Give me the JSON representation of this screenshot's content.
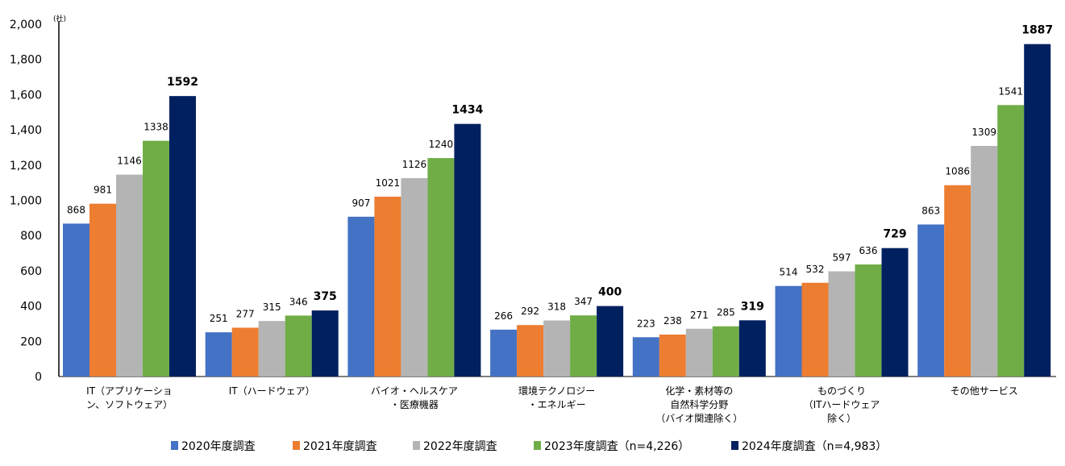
{
  "chart_data": {
    "type": "bar",
    "title": "",
    "xlabel": "",
    "ylabel": "",
    "unit_label": "(社)",
    "ylim": [
      0,
      2000
    ],
    "yticks": [
      0,
      200,
      400,
      600,
      800,
      1000,
      1200,
      1400,
      1600,
      1800,
      2000
    ],
    "ytick_labels": [
      "0",
      "200",
      "400",
      "600",
      "800",
      "1,000",
      "1,200",
      "1,400",
      "1,600",
      "1,800",
      "2,000"
    ],
    "grid": false,
    "legend_position": "bottom",
    "categories": [
      [
        "IT（アプリケーショ",
        "ン、ソフトウェア）"
      ],
      [
        "IT（ハードウェア）"
      ],
      [
        "バイオ・ヘルスケア",
        "・医療機器"
      ],
      [
        "環境テクノロジー",
        "・エネルギー"
      ],
      [
        "化学・素材等の",
        "自然科学分野",
        "（バイオ関連除く）"
      ],
      [
        "ものづくり",
        "（ITハードウェア",
        "除く）"
      ],
      [
        "その他サービス"
      ]
    ],
    "series": [
      {
        "name": "2020年度調査",
        "color": "#4472C4",
        "values": [
          868,
          251,
          907,
          266,
          223,
          514,
          863
        ]
      },
      {
        "name": "2021年度調査",
        "color": "#ED7D31",
        "values": [
          981,
          277,
          1021,
          292,
          238,
          532,
          1086
        ]
      },
      {
        "name": "2022年度調査",
        "color": "#B4B4B4",
        "values": [
          1146,
          315,
          1126,
          318,
          271,
          597,
          1309
        ]
      },
      {
        "name": "2023年度調査（n=4,226）",
        "color": "#70AD47",
        "values": [
          1338,
          346,
          1240,
          347,
          285,
          636,
          1541
        ]
      },
      {
        "name": "2024年度調査（n=4,983）",
        "color": "#002060",
        "values": [
          1592,
          375,
          1434,
          400,
          319,
          729,
          1887
        ]
      }
    ]
  }
}
